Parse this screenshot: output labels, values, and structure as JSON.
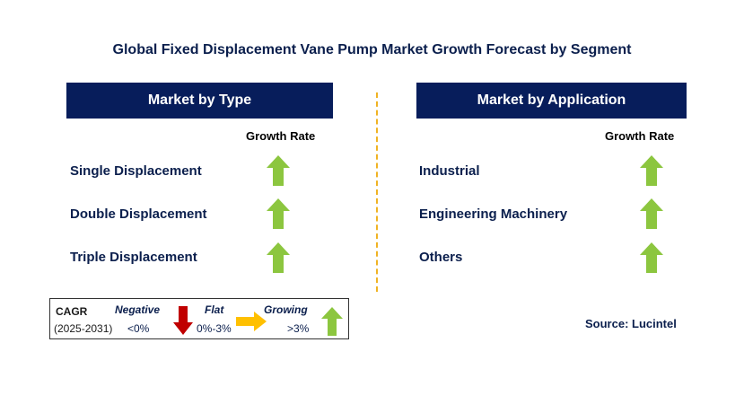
{
  "title": "Global Fixed Displacement Vane Pump Market  Growth Forecast by Segment",
  "colors": {
    "header_bg": "#071d5b",
    "growing_arrow": "#8cc63f",
    "negative_arrow": "#c00000",
    "flat_arrow": "#ffc000",
    "divider": "#f0b323"
  },
  "left_panel": {
    "header": "Market by Type",
    "column_label": "Growth Rate",
    "rows": [
      {
        "label": "Single Displacement",
        "trend": "growing"
      },
      {
        "label": "Double Displacement",
        "trend": "growing"
      },
      {
        "label": "Triple Displacement",
        "trend": "growing"
      }
    ]
  },
  "right_panel": {
    "header": "Market by Application",
    "column_label": "Growth Rate",
    "rows": [
      {
        "label": "Industrial",
        "trend": "growing"
      },
      {
        "label": "Engineering Machinery",
        "trend": "growing"
      },
      {
        "label": "Others",
        "trend": "growing"
      }
    ]
  },
  "legend": {
    "cagr_label": "CAGR",
    "period": "(2025-2031)",
    "negative": {
      "label": "Negative",
      "range": "<0%",
      "icon": "down-arrow-icon"
    },
    "flat": {
      "label": "Flat",
      "range": "0%-3%",
      "icon": "right-arrow-icon"
    },
    "growing": {
      "label": "Growing",
      "range": ">3%",
      "icon": "up-arrow-icon"
    }
  },
  "source": "Source: Lucintel"
}
